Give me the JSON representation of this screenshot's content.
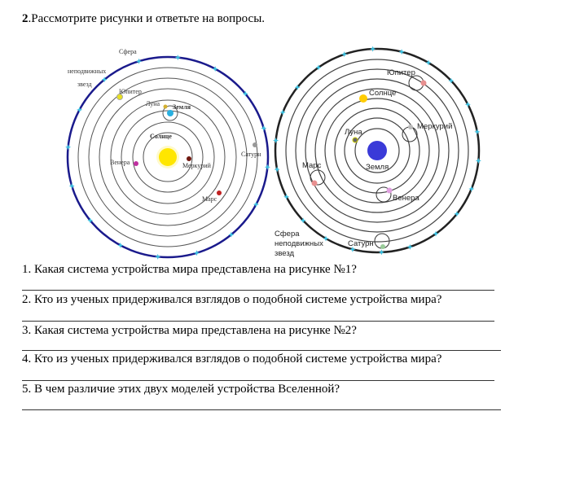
{
  "task": {
    "number": "2",
    "title": ".Рассмотрите рисунки и ответьте на вопросы."
  },
  "figure1": {
    "labels": {
      "sphere1": "Сфера",
      "sphere2": "неподвижных",
      "sphere3": "звезд",
      "jupiter": "Юпитер",
      "moon": "Луна",
      "earth": "Земля",
      "sun": "Солнце",
      "venus": "Венера",
      "mercury": "Меркурий",
      "saturn": "Сатурн",
      "mars": "Марс"
    }
  },
  "figure2": {
    "labels": {
      "jupiter": "Юпитер",
      "sun": "Солнце",
      "mercury": "Меркурий",
      "moon": "Луна",
      "earth": "Земля",
      "mars": "Марс",
      "venus": "Венера",
      "sphere1": "Сфера",
      "sphere2": "неподвижных",
      "sphere3": "звезд",
      "saturn": "Сатурн"
    }
  },
  "questions": [
    "1. Какая система устройства мира представлена на рисунке №1?",
    "2. Кто из ученых придерживался взглядов о подобной системе устройства мира?",
    "3. Какая система устройства мира представлена на рисунке №2?",
    "4. Кто из ученых придерживался взглядов о подобной системе устройства мира?",
    "5. В чем различие этих двух моделей устройства Вселенной?"
  ],
  "colors": {
    "outer_sphere_left": "#1a1a8c",
    "star_marks": "#3cc0e0",
    "sun": "#ffe600",
    "earth_right": "#3a3ad8"
  }
}
